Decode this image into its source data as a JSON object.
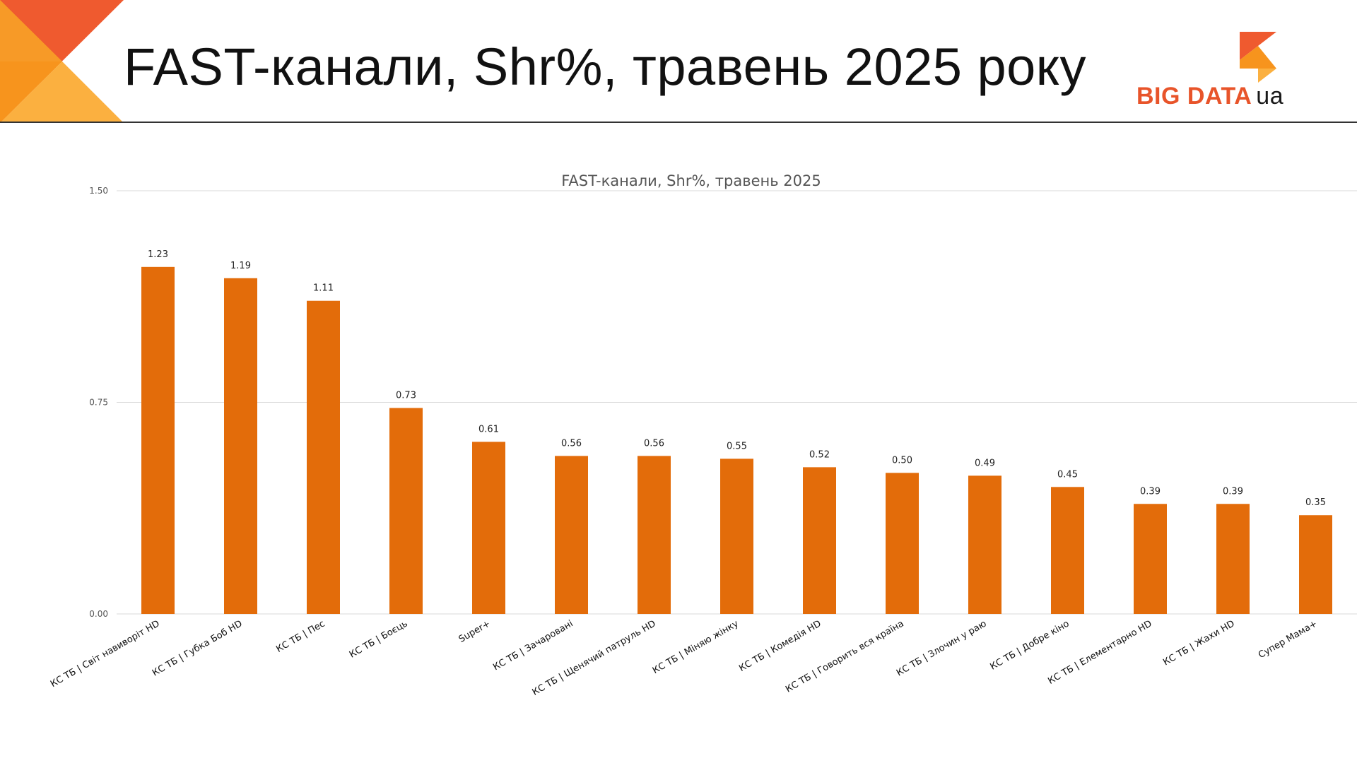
{
  "slide": {
    "title": "FAST-канали, Shr%, травень 2025 року"
  },
  "logo": {
    "text": "BIG DATA",
    "suffix": "ua"
  },
  "colors": {
    "bar": "#e36c0a",
    "accent_orange": "#f7941d",
    "accent_red": "#ef5a2f",
    "accent_light": "#fbb040",
    "grid": "#d9d9d9"
  },
  "chart_data": {
    "type": "bar",
    "title": "FAST-канали, Shr%, травень 2025",
    "xlabel": "",
    "ylabel": "",
    "ylim": [
      0,
      1.5
    ],
    "yticks": [
      "0.00",
      "0.75",
      "1.50"
    ],
    "grid": true,
    "categories": [
      "КС ТБ | Світ навиворіт HD",
      "КС ТБ | Губка Боб HD",
      "КС ТБ | Пес",
      "КС ТБ | Боєць",
      "Super+",
      "КС ТБ | Зачаровані",
      "КС ТБ | Щенячий патруль HD",
      "КС ТБ | Міняю жінку",
      "КС ТБ | Комедія HD",
      "КС ТБ | Говорить вся країна",
      "КС ТБ | Злочин у раю",
      "КС ТБ | Добре кіно",
      "КС ТБ | Елементарно HD",
      "КС ТБ | Жахи HD",
      "Супер Мама+"
    ],
    "values": [
      1.23,
      1.19,
      1.11,
      0.73,
      0.61,
      0.56,
      0.56,
      0.55,
      0.52,
      0.5,
      0.49,
      0.45,
      0.39,
      0.39,
      0.35
    ],
    "value_labels": [
      "1.23",
      "1.19",
      "1.11",
      "0.73",
      "0.61",
      "0.56",
      "0.56",
      "0.55",
      "0.52",
      "0.50",
      "0.49",
      "0.45",
      "0.39",
      "0.39",
      "0.35"
    ]
  }
}
